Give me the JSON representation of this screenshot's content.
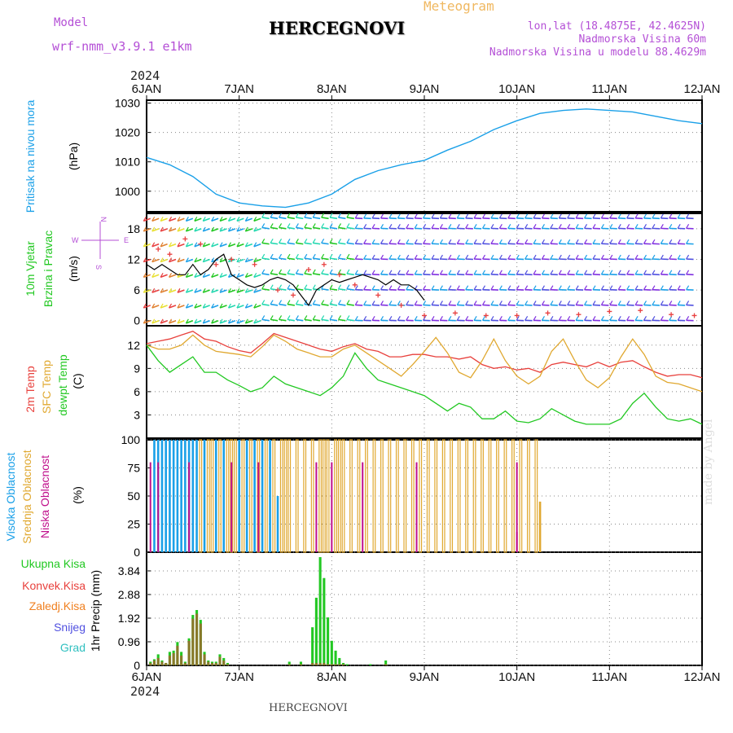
{
  "header": {
    "title": "HERCEGNOVI",
    "model_label": "Model",
    "model_name": "wrf-nmm_v3.9.1 e1km",
    "meteogram": "Meteogram",
    "lonlat": "lon,lat (18.4875E, 42.4625N)",
    "nadmorska": "Nadmorska Visina 60m",
    "nadmorska_model": "Nadmorska Visina u modelu 88.4629m",
    "year_top": "2024",
    "year_bottom": "2024",
    "footer": "HERCEGNOVI",
    "made_by": "made by Angel"
  },
  "colors": {
    "pressure": "#1aa0e8",
    "temp2m": "#e8403c",
    "sfc": "#e0a830",
    "dew": "#22c822",
    "high": "#1aa0e8",
    "mid": "#e0a830",
    "low": "#c0108c",
    "total_precip": "#22c822",
    "conv": "#e8403c",
    "frozen": "#f08020",
    "snow": "#5050e0",
    "grad": "#30c0c0"
  },
  "x_ticks": [
    "6JAN",
    "7JAN",
    "8JAN",
    "9JAN",
    "10JAN",
    "11JAN",
    "12JAN"
  ],
  "panels": {
    "pressure": {
      "ylabel_a": "Pritisak na nivou mora",
      "ylabel_b": "(hPa)",
      "ticks": [
        "1000",
        "1010",
        "1020",
        "1030"
      ]
    },
    "wind": {
      "ylabel_a": "10m Vjetar",
      "ylabel_b": "Brzina i Pravac",
      "unit": "(m/s)",
      "ticks": [
        "0",
        "6",
        "12",
        "18"
      ],
      "compass": {
        "n": "N",
        "s": "S",
        "w": "W",
        "e": "E"
      }
    },
    "temp": {
      "label_2m": "2m Temp",
      "label_sfc": "SFC Temp",
      "label_dew": "dewpt Temp",
      "unit": "(C)",
      "ticks": [
        "3",
        "6",
        "9",
        "12"
      ]
    },
    "cloud": {
      "label_high": "Visoka Oblacnost",
      "label_mid": "Srednja Oblacnost",
      "label_low": "Niska Oblacnost",
      "unit": "(%)",
      "ticks": [
        "0",
        "25",
        "50",
        "75",
        "100"
      ]
    },
    "precip": {
      "l1": "Ukupna Kisa",
      "l2": "Konvek.Kisa",
      "l3": "Zaledj.Kisa",
      "l4": "Snijeg",
      "l5": "Grad",
      "unit": "1hr Precip (mm)",
      "ticks": [
        "0",
        "0.96",
        "1.92",
        "2.88",
        "3.84"
      ]
    }
  },
  "chart_data": [
    {
      "type": "line",
      "name": "pressure",
      "x_hours": [
        0,
        6,
        12,
        18,
        24,
        30,
        36,
        42,
        48,
        54,
        60,
        66,
        72,
        78,
        84,
        90,
        96,
        102,
        108,
        114,
        120,
        126,
        132,
        138,
        144
      ],
      "values": [
        1011.5,
        1009,
        1005,
        999,
        996,
        995,
        994.5,
        996,
        999,
        1004,
        1007,
        1009,
        1010.5,
        1014,
        1017,
        1021,
        1024,
        1026.5,
        1027.5,
        1028,
        1027.5,
        1027,
        1025.5,
        1024,
        1023
      ],
      "ylim": [
        993,
        1031
      ]
    },
    {
      "type": "line",
      "name": "temperature",
      "x_hours": [
        0,
        3,
        6,
        9,
        12,
        15,
        18,
        21,
        24,
        27,
        30,
        33,
        36,
        39,
        42,
        45,
        48,
        51,
        54,
        57,
        60,
        63,
        66,
        69,
        72,
        75,
        78,
        81,
        84,
        87,
        90,
        93,
        96,
        99,
        102,
        105,
        108,
        111,
        114,
        117,
        120,
        123,
        126,
        129,
        132,
        135,
        138,
        141,
        144
      ],
      "series": [
        {
          "name": "2m Temp",
          "values": [
            12.2,
            12.5,
            12.8,
            13.3,
            13.8,
            12.8,
            12.5,
            11.8,
            11.3,
            11,
            12.2,
            13.5,
            13,
            12.5,
            12,
            11.5,
            11.2,
            11.8,
            12.2,
            11.5,
            11.2,
            10.5,
            10.5,
            10.8,
            10.8,
            10.5,
            10.5,
            10.2,
            10.5,
            9.5,
            9,
            9.2,
            8.8,
            9,
            8.5,
            9.5,
            9.8,
            9.5,
            9.2,
            9.8,
            9.2,
            9.8,
            10,
            9.2,
            8.5,
            8,
            8.2,
            8.2,
            7.8
          ]
        },
        {
          "name": "SFC Temp",
          "values": [
            12,
            11.5,
            11.5,
            12,
            13.3,
            12,
            11.2,
            11,
            10.8,
            10.5,
            11.8,
            13.3,
            12.5,
            11.5,
            11,
            10.5,
            10.5,
            11.5,
            12,
            11,
            10,
            9,
            8,
            9.5,
            11.2,
            13,
            11,
            8.5,
            7.8,
            10,
            12.8,
            10,
            8,
            7,
            8,
            11.2,
            12.8,
            10,
            7.5,
            6.5,
            7.8,
            10.5,
            12.8,
            10.8,
            8,
            7.2,
            7,
            6.5,
            6
          ]
        },
        {
          "name": "dewpt Temp",
          "values": [
            12,
            10,
            8.5,
            9.5,
            10.5,
            8.5,
            8.5,
            7.5,
            6.8,
            6,
            6.5,
            8,
            7,
            6.5,
            6,
            5.5,
            6.5,
            8,
            11,
            9,
            7.5,
            7,
            6.5,
            6,
            5.5,
            4.5,
            3.5,
            4.5,
            4,
            2.5,
            2.5,
            3.5,
            2.2,
            2,
            2.5,
            3.8,
            3,
            2.2,
            1.8,
            1.8,
            1.8,
            2.5,
            4.5,
            5.8,
            4,
            2.5,
            2.2,
            2.5,
            1.8
          ]
        }
      ],
      "ylim": [
        0,
        14.5
      ]
    },
    {
      "type": "bar",
      "name": "cloud_cover",
      "hours_high": [
        2,
        3,
        4,
        5,
        6,
        7,
        8,
        9,
        10,
        11,
        12,
        13,
        15,
        18,
        20,
        24,
        26,
        28,
        30,
        32,
        34
      ],
      "hours_mid": [
        14,
        16,
        17,
        19,
        21,
        22,
        23,
        25,
        27,
        29,
        31,
        33,
        35,
        36,
        37,
        39,
        41,
        43,
        45,
        46,
        47,
        49,
        50,
        51,
        53,
        55,
        57,
        59,
        61,
        63,
        65,
        67,
        69,
        71,
        73,
        75,
        77,
        79,
        81,
        83,
        85,
        87,
        89,
        91,
        93,
        95,
        97,
        99,
        101
      ],
      "hours_mid_partial": {
        "102": 45
      },
      "hours_high_partial": {
        "34": 50
      },
      "ylim": [
        0,
        100
      ]
    },
    {
      "type": "bar",
      "name": "precip",
      "bars": [
        {
          "h": 1,
          "total": 0.15,
          "conv": 0.1
        },
        {
          "h": 2,
          "total": 0.25,
          "conv": 0.2
        },
        {
          "h": 3,
          "total": 0.45,
          "conv": 0.3
        },
        {
          "h": 4,
          "total": 0.2,
          "conv": 0.15
        },
        {
          "h": 5,
          "total": 0.1,
          "conv": 0.1
        },
        {
          "h": 6,
          "total": 0.55,
          "conv": 0.4
        },
        {
          "h": 7,
          "total": 0.6,
          "conv": 0.5
        },
        {
          "h": 8,
          "total": 0.95,
          "conv": 0.8
        },
        {
          "h": 9,
          "total": 0.55,
          "conv": 0.4
        },
        {
          "h": 10,
          "total": 0.15,
          "conv": 0.1
        },
        {
          "h": 11,
          "total": 1.1,
          "conv": 1.0
        },
        {
          "h": 12,
          "total": 2.05,
          "conv": 1.9
        },
        {
          "h": 13,
          "total": 2.25,
          "conv": 2.1
        },
        {
          "h": 14,
          "total": 1.85,
          "conv": 1.7
        },
        {
          "h": 15,
          "total": 0.55,
          "conv": 0.45
        },
        {
          "h": 16,
          "total": 0.2,
          "conv": 0.15
        },
        {
          "h": 17,
          "total": 0.15,
          "conv": 0.1
        },
        {
          "h": 18,
          "total": 0.15,
          "conv": 0.1
        },
        {
          "h": 19,
          "total": 0.45,
          "conv": 0.35
        },
        {
          "h": 20,
          "total": 0.3,
          "conv": 0.2
        },
        {
          "h": 21,
          "total": 0.1,
          "conv": 0.05
        },
        {
          "h": 37,
          "total": 0.15,
          "conv": 0.05
        },
        {
          "h": 40,
          "total": 0.15,
          "conv": 0.05
        },
        {
          "h": 43,
          "total": 1.55,
          "conv": 0.1
        },
        {
          "h": 44,
          "total": 2.75,
          "conv": 0.1
        },
        {
          "h": 45,
          "total": 4.4,
          "conv": 0.1
        },
        {
          "h": 46,
          "total": 3.55,
          "conv": 0.1
        },
        {
          "h": 47,
          "total": 1.95,
          "conv": 0.05
        },
        {
          "h": 48,
          "total": 1.0,
          "conv": 0.05
        },
        {
          "h": 49,
          "total": 0.6,
          "conv": 0.05
        },
        {
          "h": 50,
          "total": 0.3,
          "conv": 0.05
        },
        {
          "h": 51,
          "total": 0.1,
          "conv": 0.05
        },
        {
          "h": 52,
          "total": 0.05,
          "conv": 0.0
        },
        {
          "h": 58,
          "total": 0.05,
          "conv": 0.0
        },
        {
          "h": 62,
          "total": 0.2,
          "conv": 0.05
        }
      ],
      "ylim": [
        0,
        4.6
      ]
    }
  ]
}
